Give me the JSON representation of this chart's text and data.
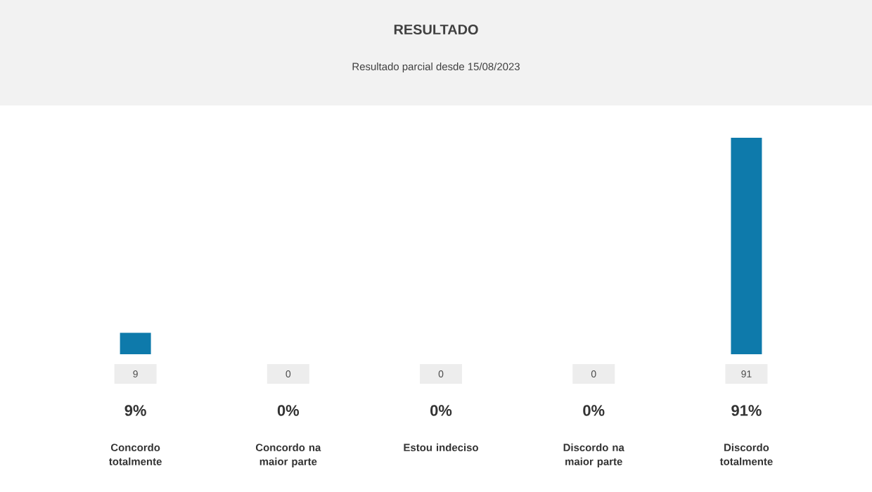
{
  "chart_data": {
    "type": "bar",
    "title": "RESULTADO",
    "subtitle": "Resultado parcial desde 15/08/2023",
    "categories": [
      "Concordo totalmente",
      "Concordo na maior parte",
      "Estou indeciso",
      "Discordo na maior parte",
      "Discordo totalmente"
    ],
    "values": [
      9,
      0,
      0,
      0,
      91
    ],
    "color": "#0e7aab",
    "value_labels": [
      "9",
      "0",
      "0",
      "0",
      "91"
    ],
    "annotations": [
      "9%",
      "0%",
      "0%",
      "0%",
      "91%"
    ]
  }
}
